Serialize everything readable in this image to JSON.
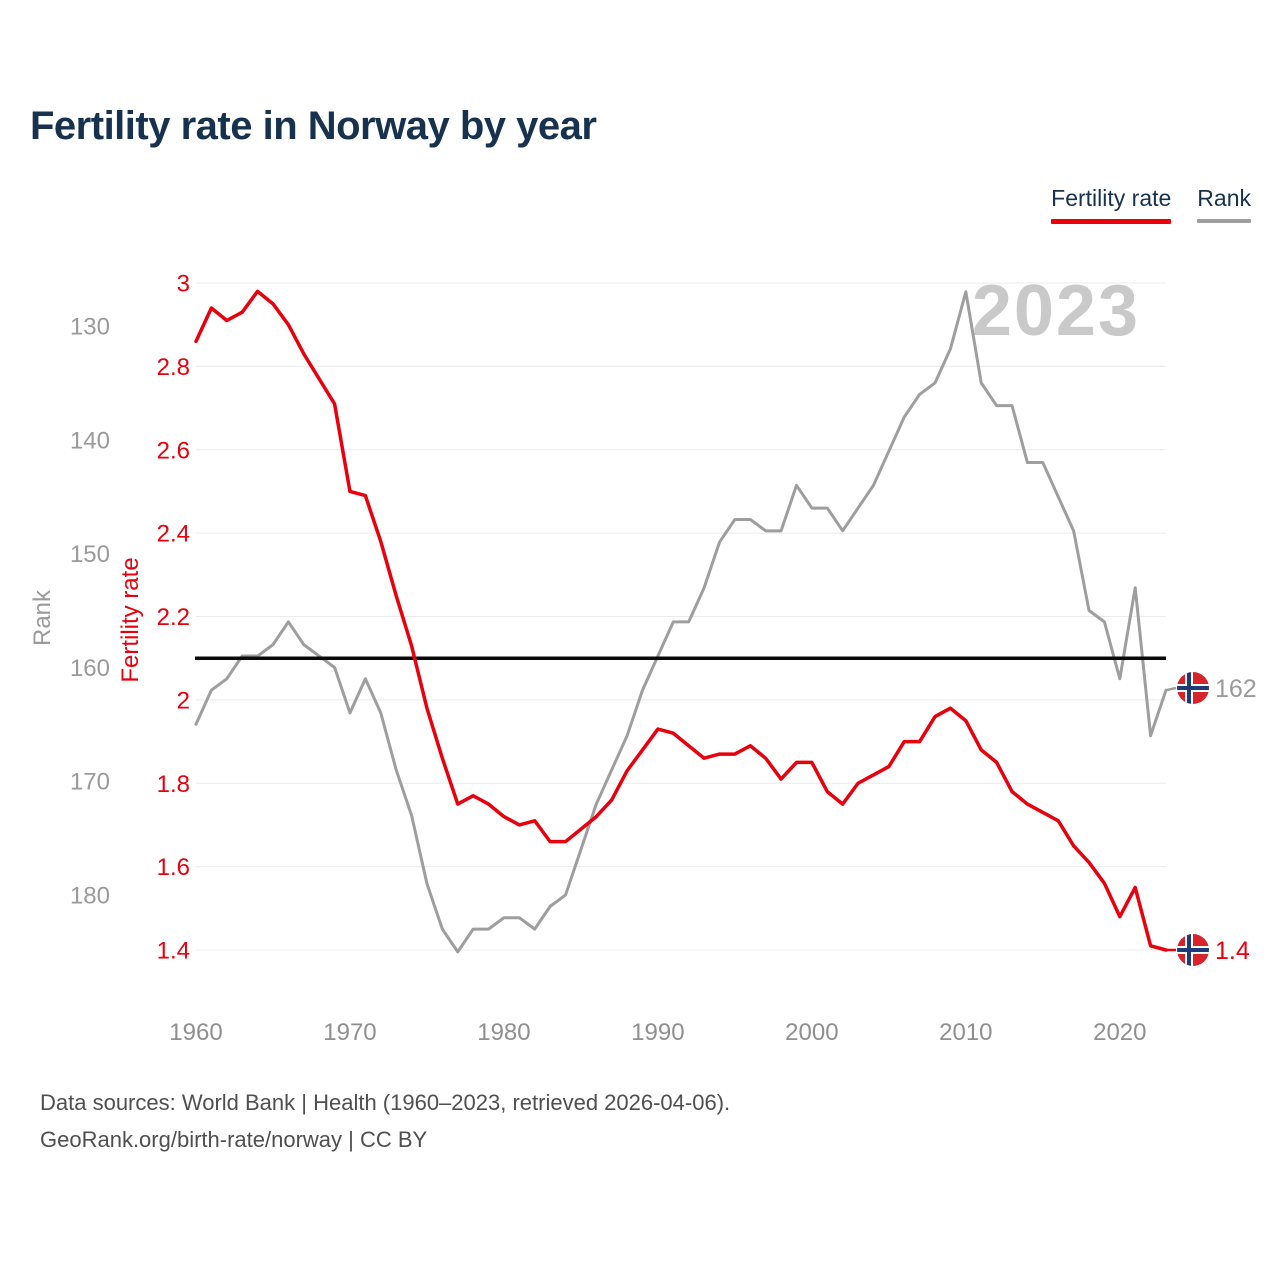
{
  "title": "Fertility rate in Norway by year",
  "legend": [
    {
      "label": "Fertility rate",
      "color": "#e8000d"
    },
    {
      "label": "Rank",
      "color": "#9e9e9e"
    }
  ],
  "watermark": "2023",
  "end_labels": {
    "rank": "162",
    "fertility": "1.4"
  },
  "footer": {
    "line1": "Data sources: World Bank | Health (1960–2023, retrieved 2026-04-06).",
    "line2": "GeoRank.org/birth-rate/norway | CC BY"
  },
  "chart_data": {
    "type": "line",
    "title": "Fertility rate in Norway by year",
    "x_ticks": [
      1960,
      1970,
      1980,
      1990,
      2000,
      2010,
      2020
    ],
    "x": [
      1960,
      1961,
      1962,
      1963,
      1964,
      1965,
      1966,
      1967,
      1968,
      1969,
      1970,
      1971,
      1972,
      1973,
      1974,
      1975,
      1976,
      1977,
      1978,
      1979,
      1980,
      1981,
      1982,
      1983,
      1984,
      1985,
      1986,
      1987,
      1988,
      1989,
      1990,
      1991,
      1992,
      1993,
      1994,
      1995,
      1996,
      1997,
      1998,
      1999,
      2000,
      2001,
      2002,
      2003,
      2004,
      2005,
      2006,
      2007,
      2008,
      2009,
      2010,
      2011,
      2012,
      2013,
      2014,
      2015,
      2016,
      2017,
      2018,
      2019,
      2020,
      2021,
      2022,
      2023
    ],
    "fertility_axis": {
      "label": "Fertility rate",
      "color": "#e8000d",
      "ticks": [
        3,
        2.8,
        2.6,
        2.4,
        2.2,
        2,
        1.8,
        1.6,
        1.4
      ],
      "range": [
        1.4,
        3
      ]
    },
    "rank_axis": {
      "label": "Rank",
      "color": "#9e9e9e",
      "ticks": [
        130,
        140,
        150,
        160,
        170,
        180
      ],
      "direction": "inverted"
    },
    "reference_line": {
      "axis": "fertility",
      "value": 2.1,
      "color": "#000000"
    },
    "grid": true,
    "legend_position": "top-right",
    "series": [
      {
        "name": "Fertility rate",
        "axis": "fertility",
        "color": "#e8000d",
        "end_label": "1.4",
        "values": [
          2.86,
          2.94,
          2.91,
          2.93,
          2.98,
          2.95,
          2.9,
          2.83,
          2.77,
          2.71,
          2.5,
          2.49,
          2.38,
          2.25,
          2.13,
          1.98,
          1.86,
          1.75,
          1.77,
          1.75,
          1.72,
          1.7,
          1.71,
          1.66,
          1.66,
          1.69,
          1.72,
          1.76,
          1.83,
          1.88,
          1.93,
          1.92,
          1.89,
          1.86,
          1.87,
          1.87,
          1.89,
          1.86,
          1.81,
          1.85,
          1.85,
          1.78,
          1.75,
          1.8,
          1.82,
          1.84,
          1.9,
          1.9,
          1.96,
          1.98,
          1.95,
          1.88,
          1.85,
          1.78,
          1.75,
          1.73,
          1.71,
          1.65,
          1.61,
          1.56,
          1.48,
          1.55,
          1.41,
          1.4
        ]
      },
      {
        "name": "Rank",
        "axis": "rank",
        "color": "#9e9e9e",
        "end_label": "162",
        "values": [
          165,
          162,
          161,
          159,
          159,
          158,
          156,
          158,
          159,
          160,
          164,
          161,
          164,
          169,
          173,
          179,
          183,
          185,
          183,
          183,
          182,
          182,
          183,
          181,
          180,
          176,
          172,
          169,
          166,
          162,
          159,
          156,
          156,
          153,
          149,
          147,
          147,
          148,
          148,
          144,
          146,
          146,
          148,
          146,
          144,
          141,
          138,
          136,
          135,
          132,
          127,
          135,
          137,
          137,
          142,
          142,
          145,
          148,
          155,
          156,
          161,
          153,
          166,
          162
        ]
      }
    ]
  }
}
